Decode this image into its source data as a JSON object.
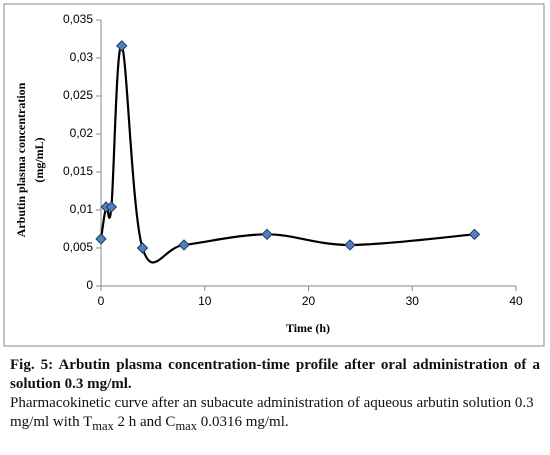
{
  "chart_data": {
    "type": "line",
    "ylabel": [
      "Arbutin plasma concentration",
      "(mg/mL)"
    ],
    "xlabel": "Time (h)",
    "x": [
      0,
      0.5,
      1,
      2,
      4,
      8,
      16,
      24,
      36
    ],
    "series": [
      {
        "color": "#4f81bd",
        "values": [
          0.0062,
          0.0104,
          0.0104,
          0.0316,
          0.005,
          0.0054,
          0.0068,
          0.0054,
          0.0068
        ]
      }
    ],
    "xlim": [
      0,
      40
    ],
    "xticks": [
      0,
      10,
      20,
      30,
      40
    ],
    "ylim": [
      0,
      0.035
    ],
    "yticks": [
      0,
      {
        "value": 0.005,
        "label": "0,005"
      },
      {
        "value": 0.01,
        "label": "0,01"
      },
      {
        "value": 0.015,
        "label": "0,015"
      },
      {
        "value": 0.02,
        "label": "0,02"
      },
      {
        "value": 0.025,
        "label": "0,025"
      },
      {
        "value": 0.03,
        "label": "0,03"
      },
      {
        "value": 0.035,
        "label": "0,035"
      }
    ],
    "smooth": true
  },
  "caption": {
    "title": "Fig. 5: Arbutin plasma concentration-time profile after oral administration of a solution 0.3 mg/ml.",
    "text": [
      "Pharmacokinetic curve after an subacute administration of aqueous arbutin solution 0.3 mg/ml with T",
      "max",
      "2 h and C",
      "max",
      "0.0316 mg/ml."
    ]
  }
}
